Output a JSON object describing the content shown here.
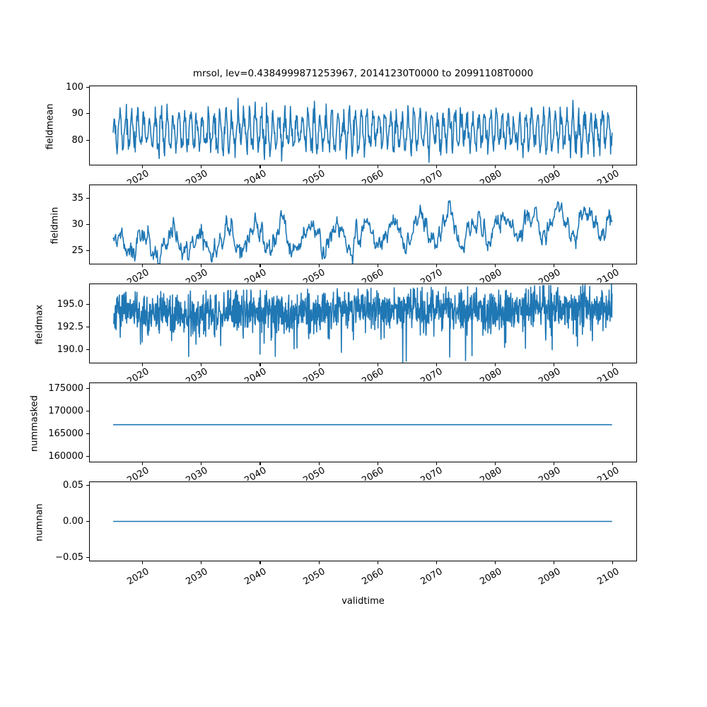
{
  "figure": {
    "title": "mrsol, lev=0.4384999871253967, 20141230T0000 to 20991108T0000",
    "xlabel": "validtime",
    "background": "#ffffff",
    "frame_color": "#000000",
    "line_color": "#1f77b4"
  },
  "chart_data": {
    "type": "line",
    "title": "mrsol, lev=0.4384999871253967, 20141230T0000 to 20991108T0000",
    "xlabel": "validtime",
    "grid": false,
    "legend": null,
    "line_color": "#1f77b4",
    "x_start": 2015.0,
    "x_end": 2099.86,
    "xlim": [
      2010.9,
      2104.1
    ],
    "xticks": {
      "values": [
        2020,
        2030,
        2040,
        2050,
        2060,
        2070,
        2080,
        2090,
        2100
      ],
      "labels": [
        "2020",
        "2030",
        "2040",
        "2050",
        "2060",
        "2070",
        "2080",
        "2090",
        "2100"
      ],
      "rotation_deg": 30
    },
    "subplots": [
      {
        "ylabel": "fieldmean",
        "ylim": [
          70.5,
          100.6
        ],
        "yticks": {
          "values": [
            80,
            90,
            100
          ],
          "labels": [
            "80",
            "90",
            "100"
          ]
        },
        "summary": {
          "pattern": "annual oscillation with noise",
          "approx_mean": 83.5,
          "approx_min": 72,
          "approx_max": 99
        },
        "synth": {
          "kind": "seasonal",
          "seed": 42,
          "n": 1020,
          "base": 83.5,
          "amp": 6,
          "period": 1,
          "phase": 0.4,
          "noise_sd": 2.3
        }
      },
      {
        "ylabel": "fieldmin",
        "ylim": [
          22.4,
          37.6
        ],
        "yticks": {
          "values": [
            25,
            30,
            35
          ],
          "labels": [
            "25",
            "30",
            "35"
          ]
        },
        "summary": {
          "pattern": "smooth multi-year oscillation with rising trend",
          "approx_start": 26.5,
          "approx_min": 22.7,
          "approx_max": 36.6
        },
        "synth": {
          "kind": "trend_seasonal_ar",
          "seed": 7,
          "n": 1020,
          "base": 25.8,
          "trend": 0.055,
          "amp": 2.2,
          "period": 4.7,
          "phase": 0.8,
          "annual_amp": 0.6,
          "ar": 0.7,
          "noise_sd": 0.85,
          "min_clip": 21.8
        }
      },
      {
        "ylabel": "fieldmax",
        "ylim": [
          188.5,
          197.3
        ],
        "yticks": {
          "values": [
            190.0,
            192.5,
            195.0
          ],
          "labels": [
            "190.0",
            "192.5",
            "195.0"
          ]
        },
        "summary": {
          "pattern": "dense noise with occasional downward spikes",
          "approx_mean": 194,
          "approx_min": 188.6,
          "approx_max": 196.6
        },
        "synth": {
          "kind": "noise_dips",
          "seed": 13,
          "n": 1700,
          "base": 193.9,
          "trend": 0.01,
          "noise_sd": 1.15,
          "top_clip": 2.45,
          "dip_prob": 0.022,
          "dip_min": 1.0,
          "dip_extra": 3.6,
          "floor": 188.6
        }
      },
      {
        "ylabel": "nummasked",
        "ylim": [
          158700,
          176300
        ],
        "yticks": {
          "values": [
            160000,
            165000,
            170000,
            175000
          ],
          "labels": [
            "160000",
            "165000",
            "170000",
            "175000"
          ]
        },
        "summary": {
          "pattern": "constant"
        },
        "synth": {
          "kind": "constant",
          "value": 167000,
          "n": 2
        }
      },
      {
        "ylabel": "numnan",
        "ylim": [
          -0.0555,
          0.0555
        ],
        "yticks": {
          "values": [
            -0.05,
            0.0,
            0.05
          ],
          "labels": [
            "−0.05",
            "0.00",
            "0.05"
          ]
        },
        "summary": {
          "pattern": "constant"
        },
        "synth": {
          "kind": "constant",
          "value": 0,
          "n": 2
        }
      }
    ]
  }
}
